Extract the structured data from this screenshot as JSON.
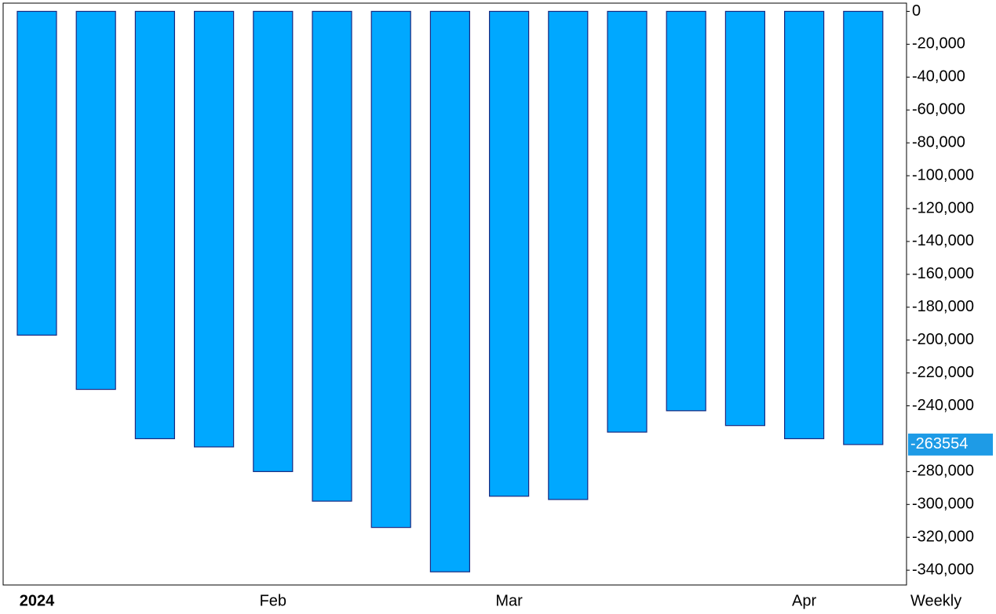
{
  "chart_data": {
    "type": "bar",
    "categories": [
      "2024",
      null,
      null,
      null,
      "Feb",
      null,
      null,
      null,
      "Mar",
      null,
      null,
      null,
      null,
      "Apr",
      null
    ],
    "values": [
      -197000,
      -230000,
      -260000,
      -265000,
      -280000,
      -298000,
      -314000,
      -341000,
      -295000,
      -297000,
      -256000,
      -243000,
      -252000,
      -260000,
      -263554
    ],
    "value_labels": [
      null,
      null,
      null,
      null,
      null,
      null,
      null,
      null,
      null,
      null,
      null,
      null,
      null,
      null,
      "-263554"
    ],
    "color": "#00a8ff",
    "edge_color": "#1a2a80",
    "period_label": "Weekly",
    "ylim": [
      -349000,
      5000
    ],
    "yticks": [
      0,
      {
        "value": -20000,
        "label": "-20,000"
      },
      {
        "value": -40000,
        "label": "-40,000"
      },
      {
        "value": -60000,
        "label": "-60,000"
      },
      {
        "value": -80000,
        "label": "-80,000"
      },
      {
        "value": -100000,
        "label": "-100,000"
      },
      {
        "value": -120000,
        "label": "-120,000"
      },
      {
        "value": -140000,
        "label": "-140,000"
      },
      {
        "value": -160000,
        "label": "-160,000"
      },
      {
        "value": -180000,
        "label": "-180,000"
      },
      {
        "value": -200000,
        "label": "-200,000"
      },
      {
        "value": -220000,
        "label": "-220,000"
      },
      {
        "value": -240000,
        "label": "-240,000"
      },
      {
        "value": -280000,
        "label": "-280,000"
      },
      {
        "value": -300000,
        "label": "-300,000"
      },
      {
        "value": -320000,
        "label": "-320,000"
      },
      {
        "value": -340000,
        "label": "-340,000"
      }
    ],
    "grid": false
  }
}
